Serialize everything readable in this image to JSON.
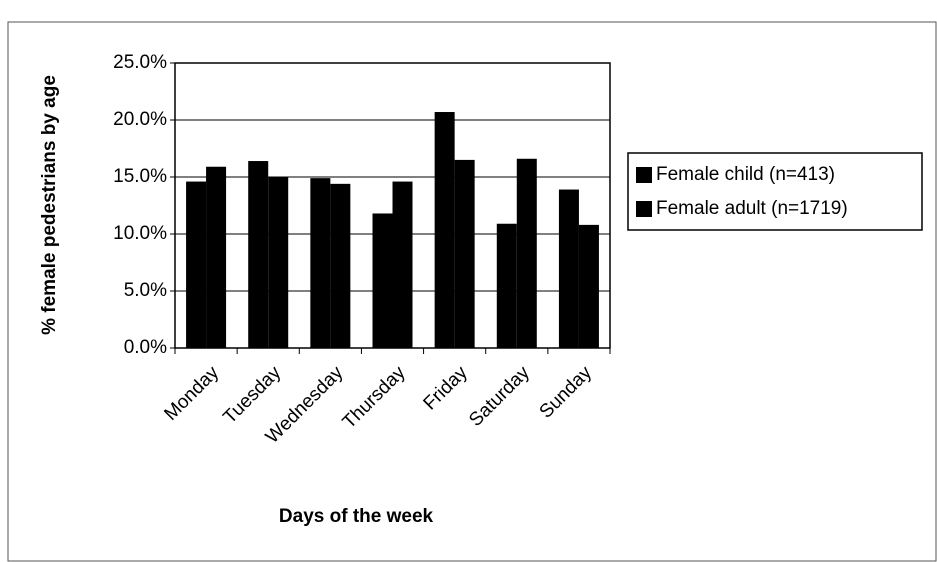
{
  "chart_data": {
    "type": "bar",
    "x_label": "Days of the week",
    "y_label": "% female pedestrians by age",
    "categories": [
      "Monday",
      "Tuesday",
      "Wednesday",
      "Thursday",
      "Friday",
      "Saturday",
      "Sunday"
    ],
    "series": [
      {
        "name": "Female child (n=413)",
        "color": "#000000",
        "values": [
          14.6,
          16.4,
          14.9,
          11.8,
          20.7,
          10.9,
          13.9
        ]
      },
      {
        "name": "Female adult (n=1719)",
        "color": "#000000",
        "values": [
          15.9,
          15.0,
          14.4,
          14.6,
          16.5,
          16.6,
          10.8
        ]
      }
    ],
    "ylim": [
      0,
      25
    ],
    "yticks": [
      {
        "value": 0,
        "label": "0.0%"
      },
      {
        "value": 5,
        "label": "5.0%"
      },
      {
        "value": 10,
        "label": "10.0%"
      },
      {
        "value": 15,
        "label": "15.0%"
      },
      {
        "value": 20,
        "label": "20.0%"
      },
      {
        "value": 25,
        "label": "25.0%"
      }
    ],
    "grid": true,
    "legend": "right"
  }
}
